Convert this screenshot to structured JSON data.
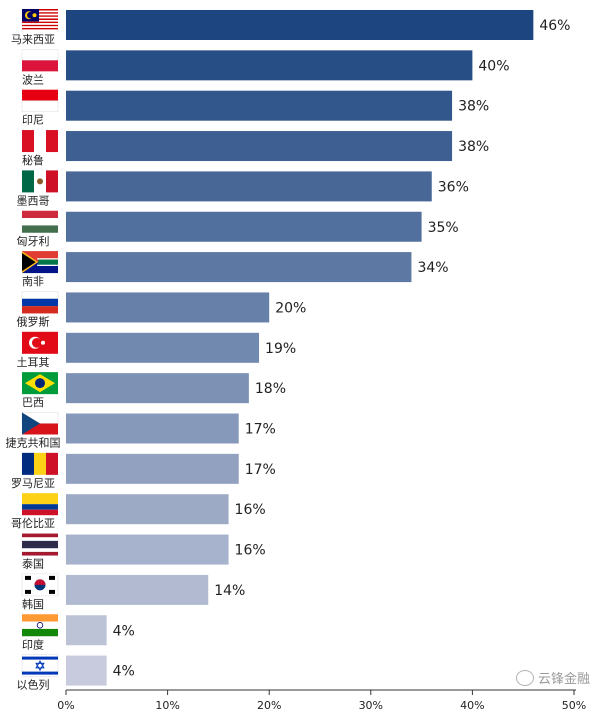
{
  "chart_data": {
    "type": "bar",
    "orientation": "horizontal",
    "categories": [
      "马来西亚",
      "波兰",
      "印尼",
      "秘鲁",
      "墨西哥",
      "匈牙利",
      "南非",
      "俄罗斯",
      "土耳其",
      "巴西",
      "捷克共和国",
      "罗马尼亚",
      "哥伦比亚",
      "泰国",
      "韩国",
      "印度",
      "以色列"
    ],
    "values": [
      46,
      40,
      38,
      38,
      36,
      35,
      34,
      20,
      19,
      18,
      17,
      17,
      16,
      16,
      14,
      4,
      4
    ],
    "data_labels": [
      "46%",
      "40%",
      "38%",
      "38%",
      "36%",
      "35%",
      "34%",
      "20%",
      "19%",
      "18%",
      "17%",
      "17%",
      "16%",
      "16%",
      "14%",
      "4%",
      "4%"
    ],
    "xlim": [
      0,
      50
    ],
    "x_ticks": [
      "0%",
      "10%",
      "20%",
      "30%",
      "40%",
      "50%"
    ],
    "grid": false,
    "bar_color_start": "#1d4680",
    "bar_color_end": "#c7cbdd",
    "flags": [
      "malaysia-flag-icon",
      "poland-flag-icon",
      "indonesia-flag-icon",
      "peru-flag-icon",
      "mexico-flag-icon",
      "hungary-flag-icon",
      "south-africa-flag-icon",
      "russia-flag-icon",
      "turkey-flag-icon",
      "brazil-flag-icon",
      "czech-flag-icon",
      "romania-flag-icon",
      "colombia-flag-icon",
      "thailand-flag-icon",
      "korea-flag-icon",
      "india-flag-icon",
      "israel-flag-icon"
    ]
  },
  "watermark": "云锋金融"
}
